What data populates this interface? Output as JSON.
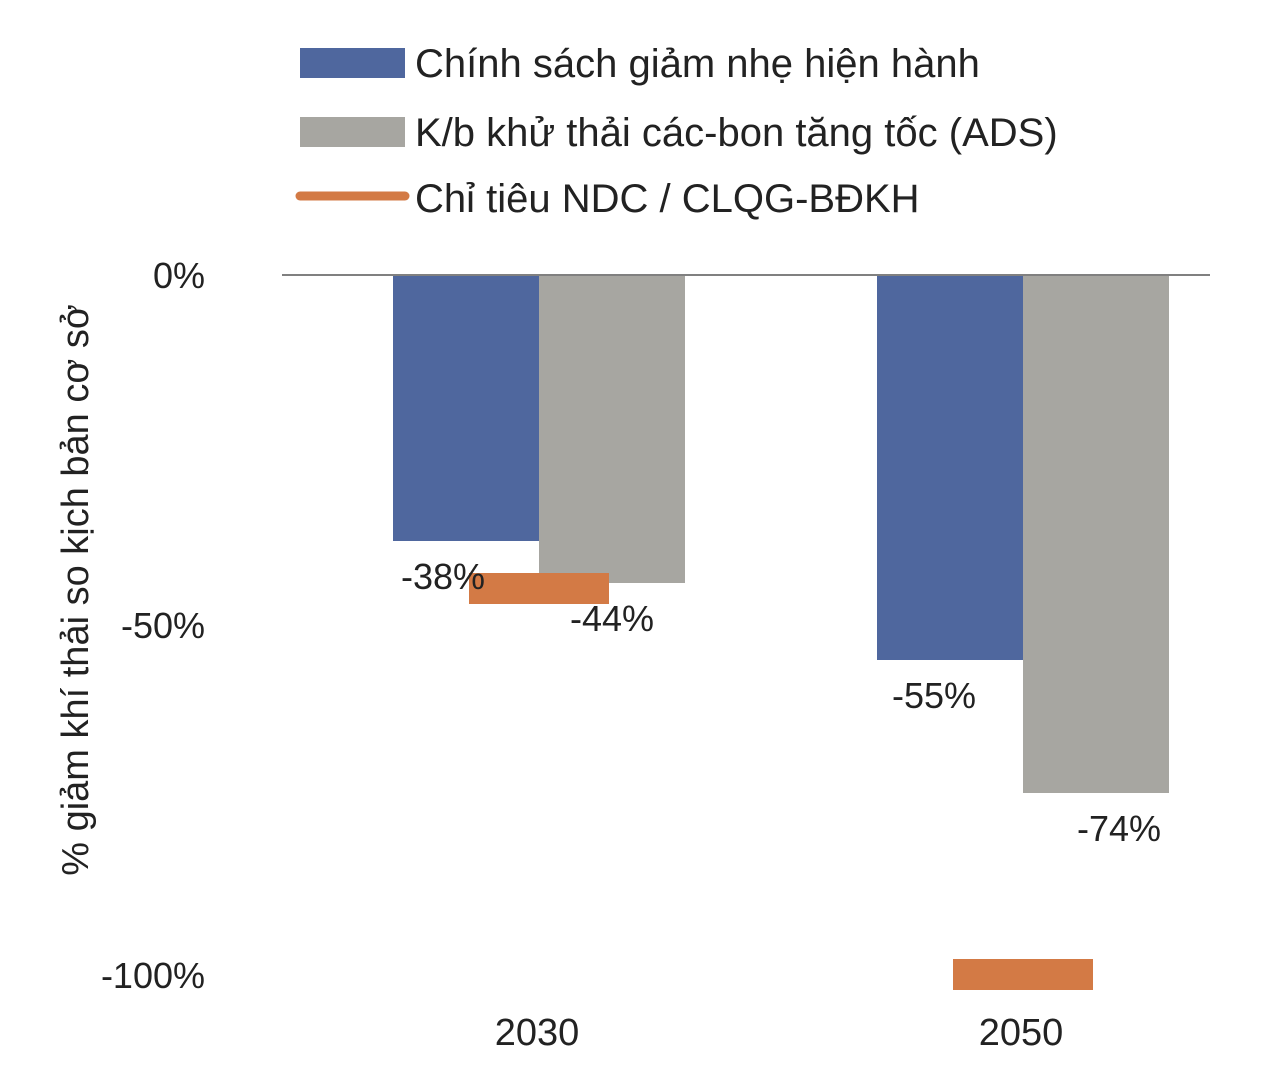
{
  "chart_data": {
    "type": "bar",
    "categories": [
      "2030",
      "2050"
    ],
    "series": [
      {
        "name": "Chính sách giảm nhẹ hiện hành",
        "values": [
          -38,
          -55
        ],
        "color": "#4f679e"
      },
      {
        "name": "K/b khử thải các-bon tăng tốc (ADS)",
        "values": [
          -44,
          -74
        ],
        "color": "#a7a6a1"
      }
    ],
    "targets": {
      "name": "Chỉ tiêu NDC / CLQG-BĐKH",
      "values": [
        -43,
        -100
      ],
      "color": "#d37a45"
    },
    "data_labels": [
      [
        "-38%",
        "-55%"
      ],
      [
        "-44%",
        "-74%"
      ]
    ],
    "title": "",
    "xlabel": "",
    "ylabel": "% giảm khí thải so kịch bản cơ sở",
    "ylim": [
      -100,
      0
    ],
    "yticks": [
      {
        "value": 0,
        "label": "0%"
      },
      {
        "value": -50,
        "label": "-50%"
      },
      {
        "value": -100,
        "label": "-100%"
      }
    ],
    "grid": false,
    "legend_position": "top"
  }
}
